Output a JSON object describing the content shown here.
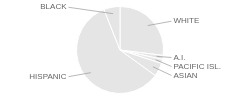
{
  "chart_data": {
    "type": "pie",
    "categories": [
      "WHITE",
      "A.I.",
      "PACIFIC ISL.",
      "ASIAN",
      "HISPANIC",
      "BLACK"
    ],
    "values": [
      27,
      1.5,
      1.5,
      5,
      59,
      6
    ]
  }
}
